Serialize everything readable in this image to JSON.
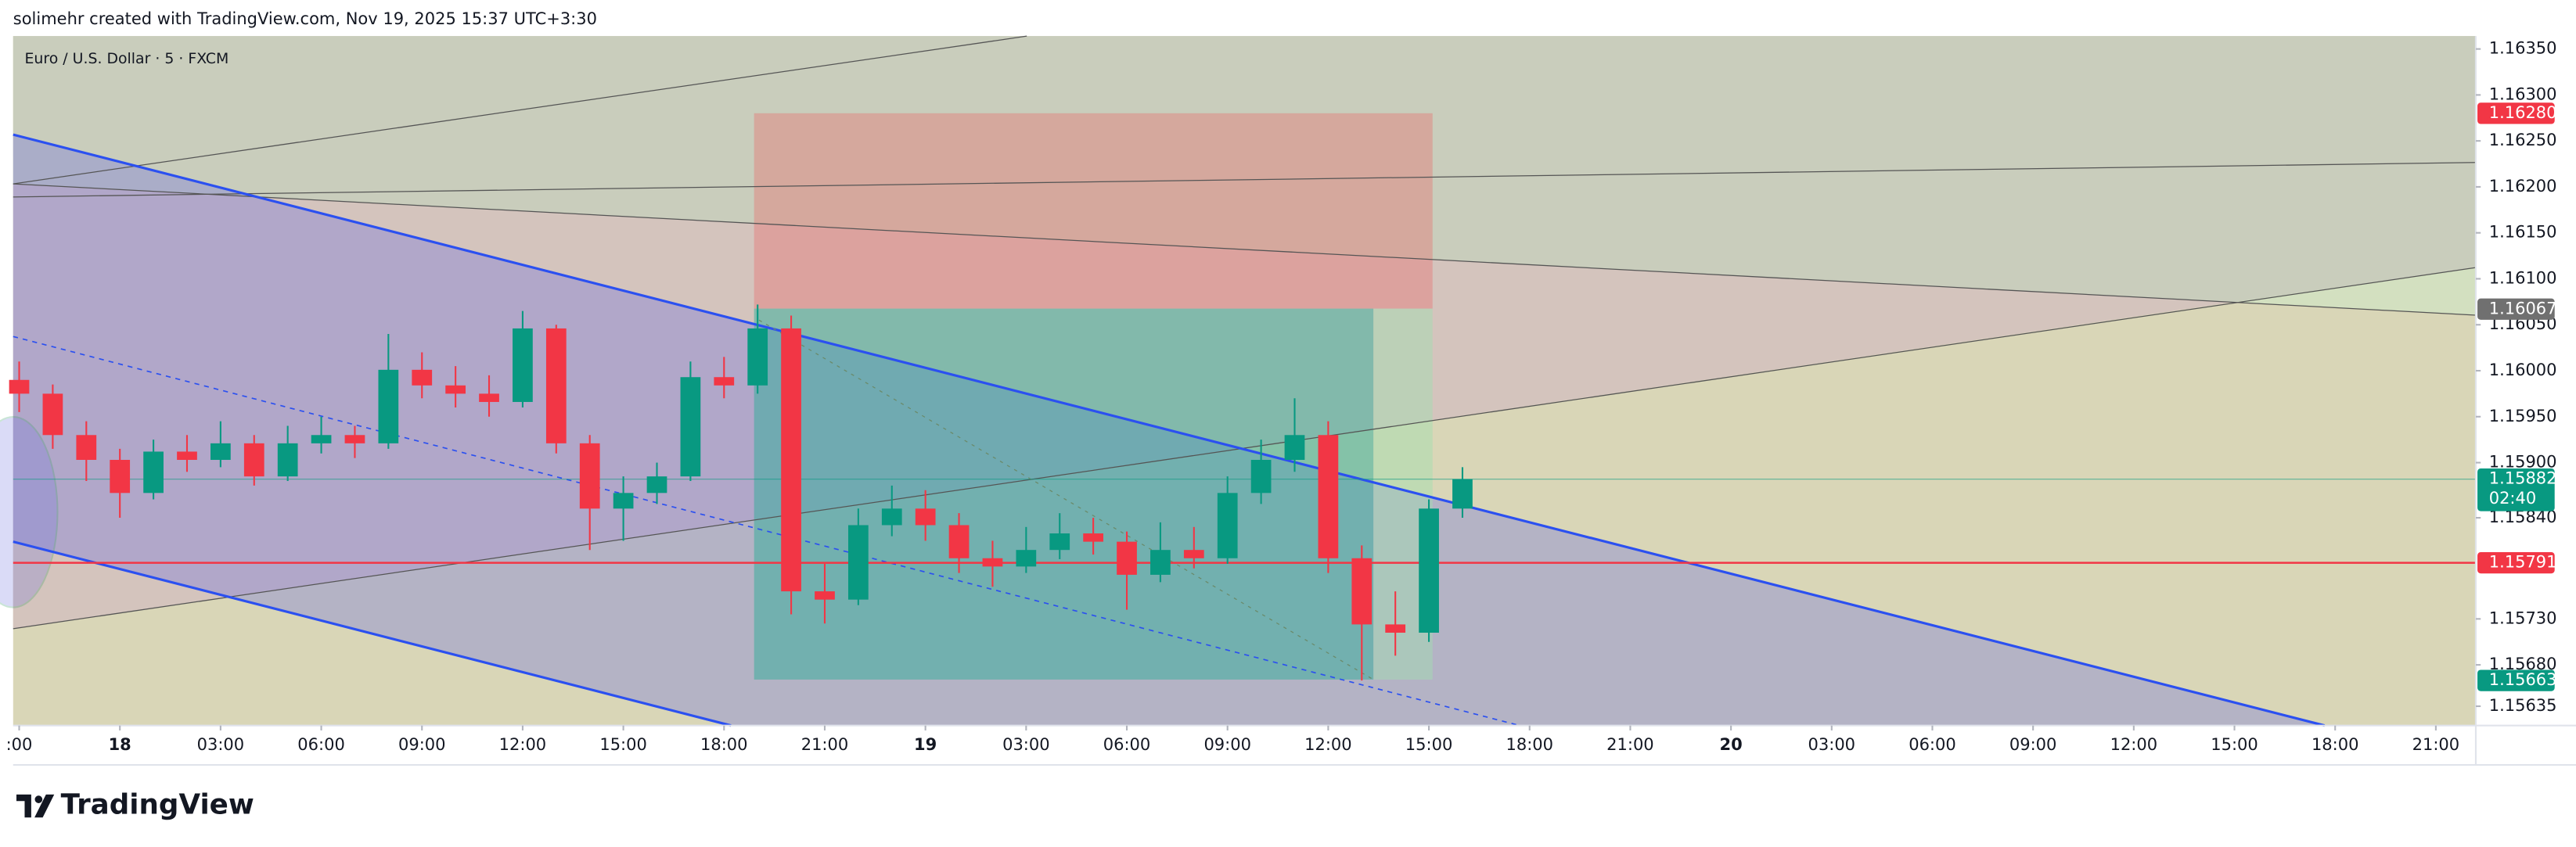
{
  "header": "solimehr created with TradingView.com, Nov 19, 2025 15:37 UTC+3:30",
  "brand": "TradingView",
  "chart_data": {
    "type": "candlestick",
    "title": "Euro / U.S. Dollar · 5 · FXCM",
    "up_color": "#089981",
    "down_color": "#f23645",
    "x": [
      -3,
      -2,
      -1,
      0,
      1,
      2,
      3,
      4,
      5,
      6,
      7,
      8,
      9,
      10,
      11,
      12,
      13,
      14,
      15,
      16,
      17,
      18,
      19,
      20,
      21,
      22,
      23,
      24,
      25,
      26,
      27,
      28,
      29,
      30,
      31,
      32,
      33,
      34,
      35,
      36,
      37,
      38,
      39,
      40
    ],
    "open": [
      1.1599,
      1.15975,
      1.1593,
      1.15903,
      1.15867,
      1.15912,
      1.15903,
      1.15921,
      1.15885,
      1.15921,
      1.1593,
      1.15921,
      1.16001,
      1.15984,
      1.15975,
      1.15966,
      1.16046,
      1.15921,
      1.1585,
      1.15867,
      1.15885,
      1.15993,
      1.15984,
      1.16046,
      1.1576,
      1.15751,
      1.15832,
      1.1585,
      1.15832,
      1.15796,
      1.15787,
      1.15805,
      1.15823,
      1.15814,
      1.15778,
      1.15805,
      1.15796,
      1.15867,
      1.15903,
      1.1593,
      1.15796,
      1.15724,
      1.15715,
      1.1585
    ],
    "high": [
      1.1601,
      1.15985,
      1.15945,
      1.15915,
      1.15925,
      1.1593,
      1.15945,
      1.1593,
      1.1594,
      1.1595,
      1.1594,
      1.1604,
      1.1602,
      1.16005,
      1.15995,
      1.16065,
      1.1605,
      1.1593,
      1.15885,
      1.159,
      1.1601,
      1.16015,
      1.16072,
      1.1606,
      1.1579,
      1.1585,
      1.15875,
      1.1587,
      1.15845,
      1.15815,
      1.1583,
      1.15845,
      1.1584,
      1.15825,
      1.15835,
      1.1583,
      1.15885,
      1.15925,
      1.1597,
      1.15945,
      1.1581,
      1.1576,
      1.1586,
      1.15895
    ],
    "low": [
      1.15955,
      1.15915,
      1.1588,
      1.1584,
      1.1586,
      1.1589,
      1.15895,
      1.15875,
      1.1588,
      1.1591,
      1.15905,
      1.15915,
      1.1597,
      1.1596,
      1.1595,
      1.1596,
      1.1591,
      1.15805,
      1.15815,
      1.15855,
      1.1588,
      1.1597,
      1.15975,
      1.15735,
      1.15725,
      1.15745,
      1.1582,
      1.15815,
      1.1578,
      1.15765,
      1.1578,
      1.15795,
      1.158,
      1.1574,
      1.1577,
      1.15785,
      1.1579,
      1.15855,
      1.1589,
      1.1578,
      1.15663,
      1.1569,
      1.15705,
      1.1584
    ],
    "close": [
      1.15975,
      1.1593,
      1.15903,
      1.15867,
      1.15912,
      1.15903,
      1.15921,
      1.15885,
      1.15921,
      1.1593,
      1.15921,
      1.16001,
      1.15984,
      1.15975,
      1.15966,
      1.16046,
      1.15921,
      1.1585,
      1.15867,
      1.15885,
      1.15993,
      1.15984,
      1.16046,
      1.1576,
      1.15751,
      1.15832,
      1.1585,
      1.15832,
      1.15796,
      1.15787,
      1.15805,
      1.15823,
      1.15814,
      1.15778,
      1.15805,
      1.15796,
      1.15867,
      1.15903,
      1.1593,
      1.15796,
      1.15724,
      1.15715,
      1.1585,
      1.15882
    ],
    "xlim": [
      -3.18,
      70.19
    ],
    "xticks": [
      {
        "value": -3,
        "label": ":00"
      },
      {
        "value": 0,
        "label": "18"
      },
      {
        "value": 3,
        "label": "03:00"
      },
      {
        "value": 6,
        "label": "06:00"
      },
      {
        "value": 9,
        "label": "09:00"
      },
      {
        "value": 12,
        "label": "12:00"
      },
      {
        "value": 15,
        "label": "15:00"
      },
      {
        "value": 18,
        "label": "18:00"
      },
      {
        "value": 21,
        "label": "21:00"
      },
      {
        "value": 24,
        "label": "19"
      },
      {
        "value": 27,
        "label": "03:00"
      },
      {
        "value": 30,
        "label": "06:00"
      },
      {
        "value": 33,
        "label": "09:00"
      },
      {
        "value": 36,
        "label": "12:00"
      },
      {
        "value": 39,
        "label": "15:00"
      },
      {
        "value": 42,
        "label": "18:00"
      },
      {
        "value": 45,
        "label": "21:00"
      },
      {
        "value": 48,
        "label": "20"
      },
      {
        "value": 51,
        "label": "03:00"
      },
      {
        "value": 54,
        "label": "06:00"
      },
      {
        "value": 57,
        "label": "09:00"
      },
      {
        "value": 60,
        "label": "12:00"
      },
      {
        "value": 63,
        "label": "15:00"
      },
      {
        "value": 66,
        "label": "18:00"
      },
      {
        "value": 69,
        "label": "21:00"
      }
    ],
    "ylim": [
      1.15614,
      1.16364
    ],
    "yticks": [
      {
        "value": 1.1635,
        "label": "1.16350"
      },
      {
        "value": 1.163,
        "label": "1.16300"
      },
      {
        "value": 1.1625,
        "label": "1.16250"
      },
      {
        "value": 1.162,
        "label": "1.16200"
      },
      {
        "value": 1.1615,
        "label": "1.16150"
      },
      {
        "value": 1.161,
        "label": "1.16100"
      },
      {
        "value": 1.1605,
        "label": "1.16050"
      },
      {
        "value": 1.16,
        "label": "1.16000"
      },
      {
        "value": 1.1595,
        "label": "1.15950"
      },
      {
        "value": 1.159,
        "label": "1.15900"
      },
      {
        "value": 1.1584,
        "label": "1.15840"
      },
      {
        "value": 1.1573,
        "label": "1.15730"
      },
      {
        "value": 1.1568,
        "label": "1.15680"
      },
      {
        "value": 1.15635,
        "label": "1.15635"
      }
    ],
    "price_labels": [
      {
        "value": 1.1628,
        "label": "1.16280",
        "color": "#f23645"
      },
      {
        "value": 1.16067,
        "label": "1.16067",
        "color": "#707070"
      },
      {
        "value": 1.15882,
        "label": "1.15882",
        "color": "#089981",
        "countdown": "02:40",
        "line": true
      },
      {
        "value": 1.15791,
        "label": "1.15791",
        "color": "#f23645",
        "line": true
      },
      {
        "value": 1.15663,
        "label": "1.15663",
        "color": "#089981"
      }
    ]
  }
}
